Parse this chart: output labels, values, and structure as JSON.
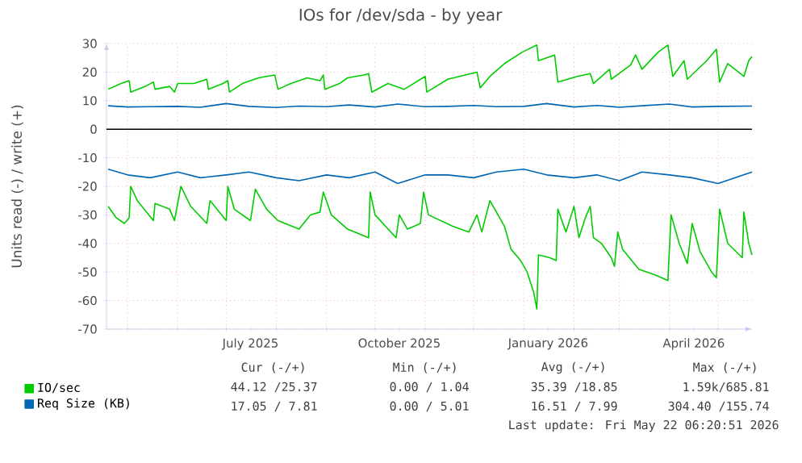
{
  "chart_data": {
    "type": "line",
    "title": "IOs for /dev/sda - by year",
    "ylabel": "Units read (-) / write (+)",
    "xlim": [
      "2025-04-18",
      "2026-05-22"
    ],
    "ylim": [
      -70,
      30
    ],
    "yticks": [
      -70,
      -60,
      -50,
      -40,
      -30,
      -20,
      -10,
      0,
      10,
      20,
      30
    ],
    "xticks": [
      {
        "value": "2025-05-01",
        "label": null
      },
      {
        "value": "2025-06-01",
        "label": null
      },
      {
        "value": "2025-07-01",
        "label": null
      },
      {
        "value": "2025-07-16",
        "label": "July 2025"
      },
      {
        "value": "2025-08-01",
        "label": null
      },
      {
        "value": "2025-09-01",
        "label": null
      },
      {
        "value": "2025-10-01",
        "label": null
      },
      {
        "value": "2025-10-16",
        "label": "October 2025"
      },
      {
        "value": "2025-11-01",
        "label": null
      },
      {
        "value": "2025-12-01",
        "label": null
      },
      {
        "value": "2026-01-01",
        "label": null
      },
      {
        "value": "2026-01-16",
        "label": "January 2026"
      },
      {
        "value": "2026-02-01",
        "label": null
      },
      {
        "value": "2026-03-01",
        "label": null
      },
      {
        "value": "2026-04-01",
        "label": null
      },
      {
        "value": "2026-04-16",
        "label": "April 2026"
      },
      {
        "value": "2026-05-01",
        "label": null
      }
    ],
    "grid": true,
    "legend": "bottom left",
    "ref_lines": [
      {
        "axis": "y",
        "value": 0,
        "color": "#000000"
      }
    ],
    "series": [
      {
        "name": "IO/sec",
        "color": "#00cc00",
        "x": [
          "2025-04-19",
          "2025-04-27",
          "2025-05-02",
          "2025-05-03",
          "2025-05-12",
          "2025-05-17",
          "2025-05-18",
          "2025-05-27",
          "2025-05-30",
          "2025-06-01",
          "2025-06-11",
          "2025-06-19",
          "2025-06-20",
          "2025-06-29",
          "2025-07-02",
          "2025-07-03",
          "2025-07-11",
          "2025-07-21",
          "2025-07-31",
          "2025-08-02",
          "2025-08-10",
          "2025-08-20",
          "2025-08-28",
          "2025-08-30",
          "2025-08-31",
          "2025-09-09",
          "2025-09-14",
          "2025-09-24",
          "2025-09-27",
          "2025-09-29",
          "2025-10-09",
          "2025-10-19",
          "2025-11-01",
          "2025-11-02",
          "2025-11-15",
          "2025-12-03",
          "2025-12-05",
          "2025-12-11",
          "2025-12-20",
          "2025-12-31",
          "2026-01-09",
          "2026-01-10",
          "2026-01-20",
          "2026-01-22",
          "2026-02-03",
          "2026-02-11",
          "2026-02-13",
          "2026-02-23",
          "2026-02-24",
          "2026-03-08",
          "2026-03-11",
          "2026-03-15",
          "2026-03-25",
          "2026-03-31",
          "2026-04-03",
          "2026-04-10",
          "2026-04-12",
          "2026-04-24",
          "2026-04-30",
          "2026-05-02",
          "2026-05-07",
          "2026-05-17",
          "2026-05-20",
          "2026-05-22"
        ],
        "values": [
          14,
          16,
          17,
          13,
          15,
          16.5,
          14,
          15,
          13,
          16,
          16,
          17.5,
          14,
          16,
          17,
          13,
          16,
          18,
          19,
          14,
          16,
          18,
          17,
          19,
          14,
          16,
          18,
          19,
          19.5,
          13,
          16,
          14,
          18.5,
          13,
          17.5,
          20,
          14.5,
          18.5,
          23,
          27,
          29.5,
          24,
          26,
          16.5,
          18.5,
          19.5,
          16,
          21,
          17.5,
          22.5,
          26,
          21,
          27,
          29.5,
          18.5,
          24,
          17.5,
          24,
          28,
          16.5,
          23,
          18.5,
          24,
          25.5
        ]
      },
      {
        "color": "#00cc00",
        "x": [
          "2025-04-19",
          "2025-04-24",
          "2025-04-29",
          "2025-05-02",
          "2025-05-03",
          "2025-05-07",
          "2025-05-17",
          "2025-05-18",
          "2025-05-27",
          "2025-05-30",
          "2025-06-01",
          "2025-06-03",
          "2025-06-09",
          "2025-06-19",
          "2025-06-21",
          "2025-07-01",
          "2025-07-02",
          "2025-07-06",
          "2025-07-16",
          "2025-07-19",
          "2025-07-26",
          "2025-08-02",
          "2025-08-15",
          "2025-08-22",
          "2025-08-28",
          "2025-08-30",
          "2025-09-04",
          "2025-09-14",
          "2025-09-27",
          "2025-09-28",
          "2025-10-01",
          "2025-10-14",
          "2025-10-16",
          "2025-10-21",
          "2025-10-29",
          "2025-10-31",
          "2025-11-03",
          "2025-11-18",
          "2025-11-28",
          "2025-12-03",
          "2025-12-06",
          "2025-12-11",
          "2025-12-16",
          "2025-12-20",
          "2025-12-24",
          "2025-12-30",
          "2026-01-03",
          "2026-01-07",
          "2026-01-09",
          "2026-01-10",
          "2026-01-17",
          "2026-01-21",
          "2026-01-22",
          "2026-01-27",
          "2026-02-01",
          "2026-02-04",
          "2026-02-08",
          "2026-02-11",
          "2026-02-13",
          "2026-02-18",
          "2026-02-24",
          "2026-02-26",
          "2026-02-28",
          "2026-03-03",
          "2026-03-13",
          "2026-03-23",
          "2026-03-31",
          "2026-04-02",
          "2026-04-07",
          "2026-04-12",
          "2026-04-15",
          "2026-04-20",
          "2026-04-27",
          "2026-04-30",
          "2026-05-02",
          "2026-05-07",
          "2026-05-16",
          "2026-05-17",
          "2026-05-20",
          "2026-05-22"
        ],
        "values": [
          -27,
          -31,
          -33,
          -31,
          -20,
          -25,
          -32,
          -26,
          -28,
          -32,
          -26,
          -20,
          -27,
          -33,
          -25,
          -32,
          -20,
          -28,
          -32,
          -21,
          -28,
          -32,
          -35,
          -30,
          -29,
          -22,
          -30,
          -35,
          -38,
          -22,
          -30,
          -38,
          -30,
          -35,
          -33,
          -22,
          -30,
          -34,
          -36,
          -30,
          -36,
          -25,
          -30,
          -34,
          -42,
          -46,
          -50,
          -57,
          -63,
          -44,
          -45,
          -46,
          -28,
          -36,
          -27,
          -38,
          -31,
          -27,
          -38,
          -40,
          -45,
          -48,
          -36,
          -42,
          -49,
          -51,
          -53,
          -30,
          -40,
          -47,
          -33,
          -43,
          -50,
          -52,
          -28,
          -40,
          -45,
          -29,
          -40,
          -44
        ]
      },
      {
        "name": "Req Size (KB)",
        "color": "#0066b3",
        "x": [
          "2025-04-19",
          "2025-05-01",
          "2025-05-15",
          "2025-06-01",
          "2025-06-15",
          "2025-07-01",
          "2025-07-15",
          "2025-08-01",
          "2025-08-15",
          "2025-09-01",
          "2025-09-15",
          "2025-10-01",
          "2025-10-15",
          "2025-11-01",
          "2025-11-15",
          "2025-12-01",
          "2025-12-15",
          "2026-01-01",
          "2026-01-15",
          "2026-02-01",
          "2026-02-15",
          "2026-03-01",
          "2026-03-15",
          "2026-04-01",
          "2026-04-15",
          "2026-05-01",
          "2026-05-22"
        ],
        "values": [
          8.2,
          7.8,
          7.9,
          8.0,
          7.7,
          9.0,
          8.0,
          7.6,
          8.1,
          7.9,
          8.5,
          7.8,
          8.8,
          7.9,
          8.0,
          8.3,
          7.9,
          8.0,
          9.0,
          7.8,
          8.3,
          7.7,
          8.2,
          8.8,
          7.8,
          8.0,
          8.1
        ]
      },
      {
        "color": "#0066b3",
        "x": [
          "2025-04-19",
          "2025-05-01",
          "2025-05-15",
          "2025-06-01",
          "2025-06-15",
          "2025-07-01",
          "2025-07-15",
          "2025-08-01",
          "2025-08-15",
          "2025-09-01",
          "2025-09-15",
          "2025-10-01",
          "2025-10-15",
          "2025-11-01",
          "2025-11-15",
          "2025-12-01",
          "2025-12-15",
          "2026-01-01",
          "2026-01-15",
          "2026-02-01",
          "2026-02-15",
          "2026-03-01",
          "2026-03-15",
          "2026-04-01",
          "2026-04-15",
          "2026-05-01",
          "2026-05-22"
        ],
        "values": [
          -14,
          -16,
          -17,
          -15,
          -17,
          -16,
          -15,
          -17,
          -18,
          -16,
          -17,
          -15,
          -19,
          -16,
          -16,
          -17,
          -15,
          -14,
          -16,
          -17,
          -16,
          -18,
          -15,
          -16,
          -17,
          -19,
          -15
        ]
      }
    ],
    "annotations": [
      "Cur (-/+)",
      "Min (-/+)",
      "Avg (-/+)",
      "Max (-/+)",
      "44.12 /25.37",
      "0.00 / 1.04",
      "35.39 /18.85",
      "1.59k/685.81",
      "17.05 / 7.81",
      "0.00 / 5.01",
      "16.51 / 7.99",
      "304.40 /155.74",
      "Last update: Fri May 22 06:20:51 2026"
    ]
  }
}
